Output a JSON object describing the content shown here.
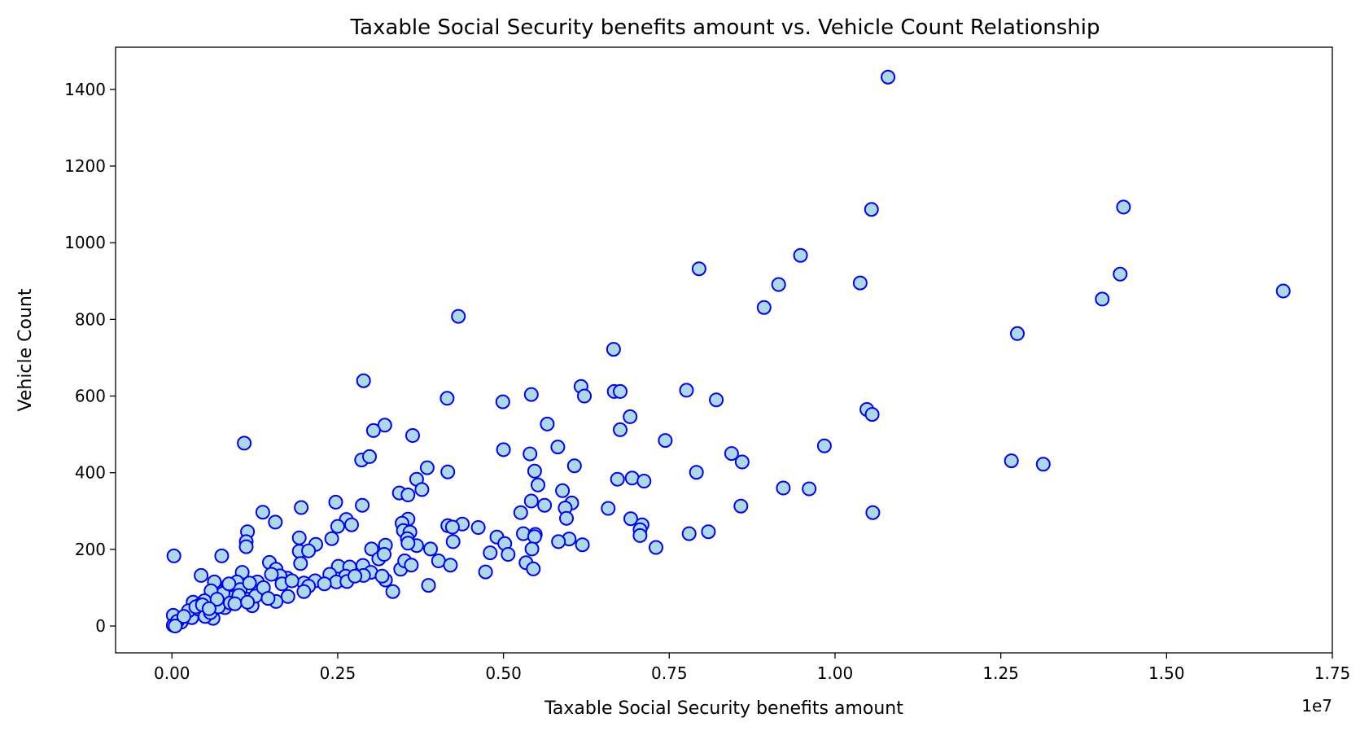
{
  "chart_data": {
    "type": "scatter",
    "title": "Taxable Social Security benefits amount vs. Vehicle Count Relationship",
    "xlabel": "Taxable Social Security benefits amount",
    "ylabel": "Vehicle Count",
    "x_offset_label": "1e7",
    "xlim": [
      -850000,
      17500000
    ],
    "ylim": [
      -70,
      1510
    ],
    "x_ticks": [
      0,
      2500000,
      5000000,
      7500000,
      10000000,
      12500000,
      15000000,
      17500000
    ],
    "x_tick_labels": [
      "0.00",
      "0.25",
      "0.50",
      "0.75",
      "1.00",
      "1.25",
      "1.50",
      "1.75"
    ],
    "y_ticks": [
      0,
      200,
      400,
      600,
      800,
      1000,
      1200,
      1400
    ],
    "y_tick_labels": [
      "0",
      "200",
      "400",
      "600",
      "800",
      "1000",
      "1200",
      "1400"
    ],
    "grid": false,
    "colors": {
      "marker_fill": "#add8e6",
      "marker_edge": "#0000ff"
    },
    "points": [
      [
        10800000,
        1432
      ],
      [
        14350000,
        1093
      ],
      [
        10550000,
        1087
      ],
      [
        7950000,
        932
      ],
      [
        9480000,
        967
      ],
      [
        9150000,
        891
      ],
      [
        10380000,
        895
      ],
      [
        8930000,
        831
      ],
      [
        14300000,
        918
      ],
      [
        14030000,
        853
      ],
      [
        16760000,
        874
      ],
      [
        12750000,
        763
      ],
      [
        4320000,
        808
      ],
      [
        6660000,
        722
      ],
      [
        2890000,
        640
      ],
      [
        6170000,
        625
      ],
      [
        6220000,
        600
      ],
      [
        6670000,
        612
      ],
      [
        6760000,
        612
      ],
      [
        7760000,
        615
      ],
      [
        8210000,
        590
      ],
      [
        4150000,
        594
      ],
      [
        4990000,
        585
      ],
      [
        5420000,
        604
      ],
      [
        5660000,
        527
      ],
      [
        6760000,
        512
      ],
      [
        6910000,
        546
      ],
      [
        7440000,
        484
      ],
      [
        10480000,
        565
      ],
      [
        10560000,
        552
      ],
      [
        3210000,
        524
      ],
      [
        3040000,
        510
      ],
      [
        3630000,
        497
      ],
      [
        1090000,
        477
      ],
      [
        9840000,
        470
      ],
      [
        5820000,
        467
      ],
      [
        5000000,
        460
      ],
      [
        5400000,
        449
      ],
      [
        8440000,
        450
      ],
      [
        8600000,
        428
      ],
      [
        6070000,
        418
      ],
      [
        2860000,
        433
      ],
      [
        2980000,
        442
      ],
      [
        3850000,
        413
      ],
      [
        5470000,
        404
      ],
      [
        4160000,
        402
      ],
      [
        7910000,
        401
      ],
      [
        12660000,
        431
      ],
      [
        13140000,
        422
      ],
      [
        3690000,
        383
      ],
      [
        6720000,
        383
      ],
      [
        6940000,
        386
      ],
      [
        7120000,
        378
      ],
      [
        5520000,
        368
      ],
      [
        3770000,
        356
      ],
      [
        3430000,
        347
      ],
      [
        3560000,
        342
      ],
      [
        5890000,
        353
      ],
      [
        9220000,
        360
      ],
      [
        9610000,
        358
      ],
      [
        1370000,
        297
      ],
      [
        1950000,
        309
      ],
      [
        2470000,
        323
      ],
      [
        2870000,
        315
      ],
      [
        5620000,
        315
      ],
      [
        6030000,
        321
      ],
      [
        5420000,
        326
      ],
      [
        5930000,
        308
      ],
      [
        6580000,
        307
      ],
      [
        8580000,
        313
      ],
      [
        10570000,
        296
      ],
      [
        5260000,
        296
      ],
      [
        2630000,
        278
      ],
      [
        3560000,
        279
      ],
      [
        1560000,
        271
      ],
      [
        2710000,
        264
      ],
      [
        3470000,
        268
      ],
      [
        4380000,
        266
      ],
      [
        4160000,
        262
      ],
      [
        4230000,
        258
      ],
      [
        2500000,
        260
      ],
      [
        5950000,
        281
      ],
      [
        6920000,
        280
      ],
      [
        7090000,
        264
      ],
      [
        4620000,
        257
      ],
      [
        3490000,
        249
      ],
      [
        3590000,
        245
      ],
      [
        1140000,
        246
      ],
      [
        1920000,
        230
      ],
      [
        2410000,
        228
      ],
      [
        3550000,
        228
      ],
      [
        3690000,
        210
      ],
      [
        4240000,
        220
      ],
      [
        4900000,
        232
      ],
      [
        5300000,
        241
      ],
      [
        5480000,
        239
      ],
      [
        5470000,
        233
      ],
      [
        5990000,
        227
      ],
      [
        5830000,
        220
      ],
      [
        6190000,
        212
      ],
      [
        7060000,
        251
      ],
      [
        7060000,
        236
      ],
      [
        7800000,
        241
      ],
      [
        8090000,
        246
      ],
      [
        7300000,
        205
      ],
      [
        1120000,
        220
      ],
      [
        1120000,
        207
      ],
      [
        2170000,
        213
      ],
      [
        1920000,
        195
      ],
      [
        2060000,
        196
      ],
      [
        3010000,
        201
      ],
      [
        3220000,
        211
      ],
      [
        3560000,
        216
      ],
      [
        3900000,
        201
      ],
      [
        4800000,
        191
      ],
      [
        5020000,
        215
      ],
      [
        5430000,
        201
      ],
      [
        1470000,
        166
      ],
      [
        1570000,
        148
      ],
      [
        1940000,
        163
      ],
      [
        2510000,
        156
      ],
      [
        2680000,
        154
      ],
      [
        2880000,
        158
      ],
      [
        3120000,
        175
      ],
      [
        3200000,
        187
      ],
      [
        3450000,
        148
      ],
      [
        3510000,
        170
      ],
      [
        3610000,
        159
      ],
      [
        4020000,
        170
      ],
      [
        4200000,
        159
      ],
      [
        5070000,
        187
      ],
      [
        5340000,
        165
      ],
      [
        5450000,
        149
      ],
      [
        4730000,
        141
      ],
      [
        3000000,
        140
      ],
      [
        2890000,
        132
      ],
      [
        2620000,
        130
      ],
      [
        2380000,
        135
      ],
      [
        2160000,
        118
      ],
      [
        1990000,
        112
      ],
      [
        1740000,
        125
      ],
      [
        1630000,
        131
      ],
      [
        1500000,
        135
      ],
      [
        1290000,
        115
      ],
      [
        1060000,
        140
      ],
      [
        980000,
        115
      ],
      [
        840000,
        105
      ],
      [
        640000,
        115
      ],
      [
        440000,
        132
      ],
      [
        750000,
        183
      ],
      [
        30000,
        183
      ],
      [
        3220000,
        120
      ],
      [
        3330000,
        90
      ],
      [
        3870000,
        106
      ],
      [
        3170000,
        130
      ],
      [
        2480000,
        115
      ],
      [
        2640000,
        116
      ],
      [
        2060000,
        104
      ],
      [
        1990000,
        90
      ],
      [
        1750000,
        77
      ],
      [
        1570000,
        64
      ],
      [
        1310000,
        88
      ],
      [
        1140000,
        70
      ],
      [
        1030000,
        95
      ],
      [
        920000,
        75
      ],
      [
        770000,
        85
      ],
      [
        590000,
        92
      ],
      [
        490000,
        66
      ],
      [
        320000,
        62
      ],
      [
        1210000,
        53
      ],
      [
        800000,
        48
      ],
      [
        620000,
        20
      ],
      [
        480000,
        38
      ],
      [
        350000,
        40
      ],
      [
        250000,
        28
      ],
      [
        120000,
        20
      ],
      [
        60000,
        7
      ],
      [
        20000,
        28
      ],
      [
        20000,
        2
      ],
      [
        150000,
        15
      ],
      [
        220000,
        30
      ],
      [
        300000,
        22
      ],
      [
        400000,
        44
      ],
      [
        500000,
        25
      ],
      [
        580000,
        35
      ],
      [
        700000,
        50
      ],
      [
        880000,
        60
      ],
      [
        1010000,
        80
      ],
      [
        1260000,
        78
      ],
      [
        1380000,
        100
      ],
      [
        1660000,
        110
      ],
      [
        1810000,
        118
      ],
      [
        2300000,
        110
      ],
      [
        2760000,
        130
      ],
      [
        950000,
        58
      ],
      [
        1140000,
        62
      ],
      [
        1450000,
        72
      ],
      [
        680000,
        70
      ],
      [
        420000,
        55
      ],
      [
        250000,
        40
      ],
      [
        140000,
        10
      ],
      [
        80000,
        12
      ],
      [
        50000,
        0
      ],
      [
        180000,
        25
      ],
      [
        360000,
        50
      ],
      [
        460000,
        55
      ],
      [
        560000,
        45
      ],
      [
        860000,
        110
      ],
      [
        1170000,
        112
      ]
    ]
  }
}
